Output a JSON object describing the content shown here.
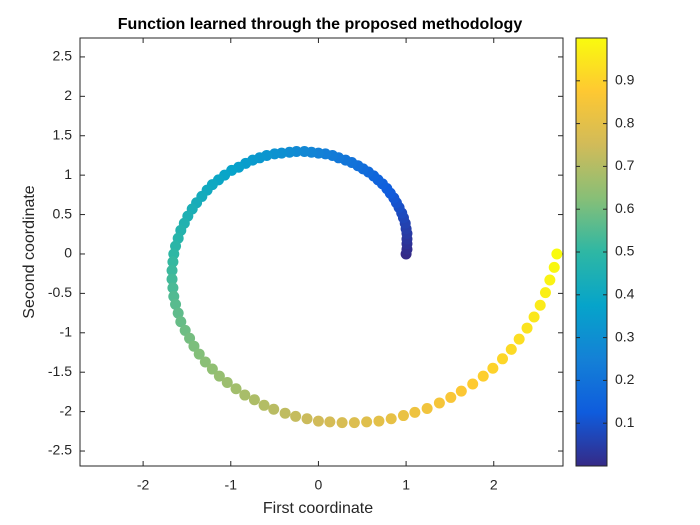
{
  "chart_data": {
    "type": "scatter",
    "title": "Function learned through the proposed methodology",
    "xlabel": "First coordinate",
    "ylabel": "Second coordinate",
    "x": [
      1,
      1.01,
      1.01,
      1.01,
      1.01,
      1,
      0.99,
      0.97,
      0.95,
      0.92,
      0.89,
      0.86,
      0.82,
      0.78,
      0.73,
      0.68,
      0.63,
      0.57,
      0.51,
      0.45,
      0.38,
      0.31,
      0.23,
      0.16,
      0.08,
      0,
      -0.08,
      -0.16,
      -0.25,
      -0.33,
      -0.42,
      -0.5,
      -0.59,
      -0.67,
      -0.75,
      -0.83,
      -0.91,
      -0.99,
      -1.07,
      -1.14,
      -1.21,
      -1.27,
      -1.33,
      -1.39,
      -1.44,
      -1.49,
      -1.53,
      -1.57,
      -1.6,
      -1.63,
      -1.65,
      -1.66,
      -1.67,
      -1.67,
      -1.66,
      -1.65,
      -1.63,
      -1.6,
      -1.57,
      -1.52,
      -1.47,
      -1.42,
      -1.36,
      -1.29,
      -1.21,
      -1.13,
      -1.04,
      -0.94,
      -0.84,
      -0.73,
      -0.62,
      -0.51,
      -0.38,
      -0.26,
      -0.13,
      0,
      0.13,
      0.27,
      0.41,
      0.55,
      0.69,
      0.83,
      0.97,
      1.1,
      1.24,
      1.38,
      1.51,
      1.63,
      1.76,
      1.88,
      1.99,
      2.1,
      2.2,
      2.29,
      2.38,
      2.46,
      2.53,
      2.59,
      2.64,
      2.69,
      2.72
    ],
    "y": [
      0,
      0.06,
      0.13,
      0.19,
      0.26,
      0.32,
      0.39,
      0.46,
      0.52,
      0.59,
      0.65,
      0.71,
      0.77,
      0.83,
      0.89,
      0.94,
      0.99,
      1.04,
      1.08,
      1.12,
      1.16,
      1.19,
      1.22,
      1.25,
      1.27,
      1.28,
      1.29,
      1.3,
      1.3,
      1.29,
      1.28,
      1.27,
      1.25,
      1.22,
      1.19,
      1.15,
      1.1,
      1.06,
      1,
      0.94,
      0.88,
      0.81,
      0.73,
      0.65,
      0.57,
      0.48,
      0.39,
      0.3,
      0.2,
      0.1,
      0,
      -0.1,
      -0.21,
      -0.32,
      -0.43,
      -0.54,
      -0.64,
      -0.75,
      -0.86,
      -0.97,
      -1.07,
      -1.17,
      -1.27,
      -1.37,
      -1.46,
      -1.55,
      -1.63,
      -1.71,
      -1.79,
      -1.85,
      -1.92,
      -1.97,
      -2.02,
      -2.06,
      -2.09,
      -2.12,
      -2.13,
      -2.14,
      -2.14,
      -2.13,
      -2.12,
      -2.09,
      -2.05,
      -2.01,
      -1.96,
      -1.89,
      -1.82,
      -1.74,
      -1.65,
      -1.55,
      -1.45,
      -1.33,
      -1.21,
      -1.08,
      -0.94,
      -0.8,
      -0.65,
      -0.49,
      -0.33,
      -0.17,
      0
    ],
    "color_values": [
      0,
      0.01,
      0.02,
      0.03,
      0.04,
      0.05,
      0.06,
      0.07,
      0.08,
      0.09,
      0.1,
      0.11,
      0.12,
      0.13,
      0.14,
      0.15,
      0.16,
      0.17,
      0.18,
      0.19,
      0.2,
      0.21,
      0.22,
      0.23,
      0.24,
      0.25,
      0.26,
      0.27,
      0.28,
      0.29,
      0.3,
      0.31,
      0.32,
      0.33,
      0.34,
      0.35,
      0.36,
      0.37,
      0.38,
      0.39,
      0.4,
      0.41,
      0.42,
      0.43,
      0.44,
      0.45,
      0.46,
      0.47,
      0.48,
      0.49,
      0.5,
      0.51,
      0.52,
      0.53,
      0.54,
      0.55,
      0.56,
      0.57,
      0.58,
      0.59,
      0.6,
      0.61,
      0.62,
      0.63,
      0.64,
      0.65,
      0.66,
      0.67,
      0.68,
      0.69,
      0.7,
      0.71,
      0.72,
      0.73,
      0.74,
      0.75,
      0.76,
      0.77,
      0.78,
      0.79,
      0.8,
      0.81,
      0.82,
      0.83,
      0.84,
      0.85,
      0.86,
      0.87,
      0.88,
      0.89,
      0.9,
      0.91,
      0.92,
      0.93,
      0.94,
      0.95,
      0.96,
      0.97,
      0.98,
      0.99,
      1
    ],
    "colormap": [
      "#352a87",
      "#0f5cdd",
      "#1481d6",
      "#06a4ca",
      "#2eb7a4",
      "#87bf77",
      "#d1bb59",
      "#fec832",
      "#f9fb0e"
    ],
    "xlim": [
      -2.72,
      2.79
    ],
    "ylim": [
      -2.69,
      2.74
    ],
    "xticks": [
      -2,
      -1,
      0,
      1,
      2
    ],
    "yticks": [
      -2.5,
      -2,
      -1.5,
      -1,
      -0.5,
      0,
      0.5,
      1,
      1.5,
      2,
      2.5
    ],
    "clim": [
      0,
      1
    ],
    "cticks": [
      0.1,
      0.2,
      0.3,
      0.4,
      0.5,
      0.6,
      0.7,
      0.8,
      0.9
    ],
    "colorbar": true,
    "grid": false
  }
}
